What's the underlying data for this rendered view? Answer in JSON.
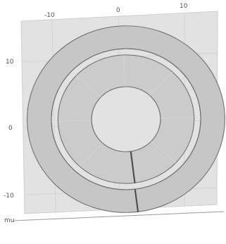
{
  "view": {
    "x_ticks": [
      "-10",
      "0",
      "10"
    ],
    "y_ticks": [
      "10",
      "0",
      "-10"
    ],
    "unit": "mu",
    "colors": {
      "plot_bg": "#e2e2e2",
      "grid": "#cfcfcf",
      "ring_fill": "#c5c5c5",
      "ring_fill_inner": "#cacaca",
      "ring_edge": "#6a6a6a",
      "axis": "#9a9a9a"
    }
  }
}
